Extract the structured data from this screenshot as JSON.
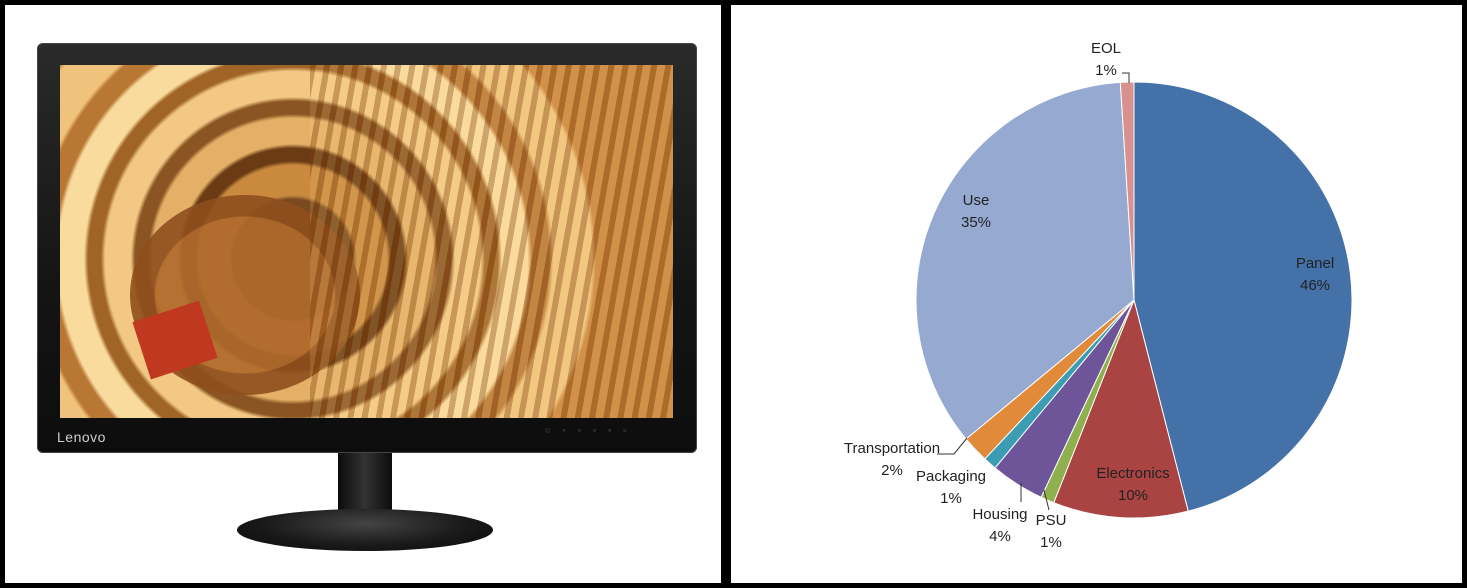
{
  "monitor": {
    "brand": "Lenovo"
  },
  "chart_data": {
    "type": "pie",
    "title": "",
    "slices": [
      {
        "name": "Panel",
        "percent": 46,
        "color": "#4472A8"
      },
      {
        "name": "Electronics",
        "percent": 10,
        "color": "#A94442"
      },
      {
        "name": "PSU",
        "percent": 1,
        "color": "#8FB04F"
      },
      {
        "name": "Housing",
        "percent": 4,
        "color": "#6E5599"
      },
      {
        "name": "Packaging",
        "percent": 1,
        "color": "#3B9CB3"
      },
      {
        "name": "Transportation",
        "percent": 2,
        "color": "#E08A3A"
      },
      {
        "name": "Use",
        "percent": 35,
        "color": "#95A9D1"
      },
      {
        "name": "EOL",
        "percent": 1,
        "color": "#D9918F"
      }
    ],
    "labels": [
      {
        "name": "Panel",
        "value": "46%"
      },
      {
        "name": "Electronics",
        "value": "10%"
      },
      {
        "name": "PSU",
        "value": "1%"
      },
      {
        "name": "Housing",
        "value": "4%"
      },
      {
        "name": "Packaging",
        "value": "1%"
      },
      {
        "name": "Transportation",
        "value": "2%"
      },
      {
        "name": "Use",
        "value": "35%"
      },
      {
        "name": "EOL",
        "value": "1%"
      }
    ]
  }
}
